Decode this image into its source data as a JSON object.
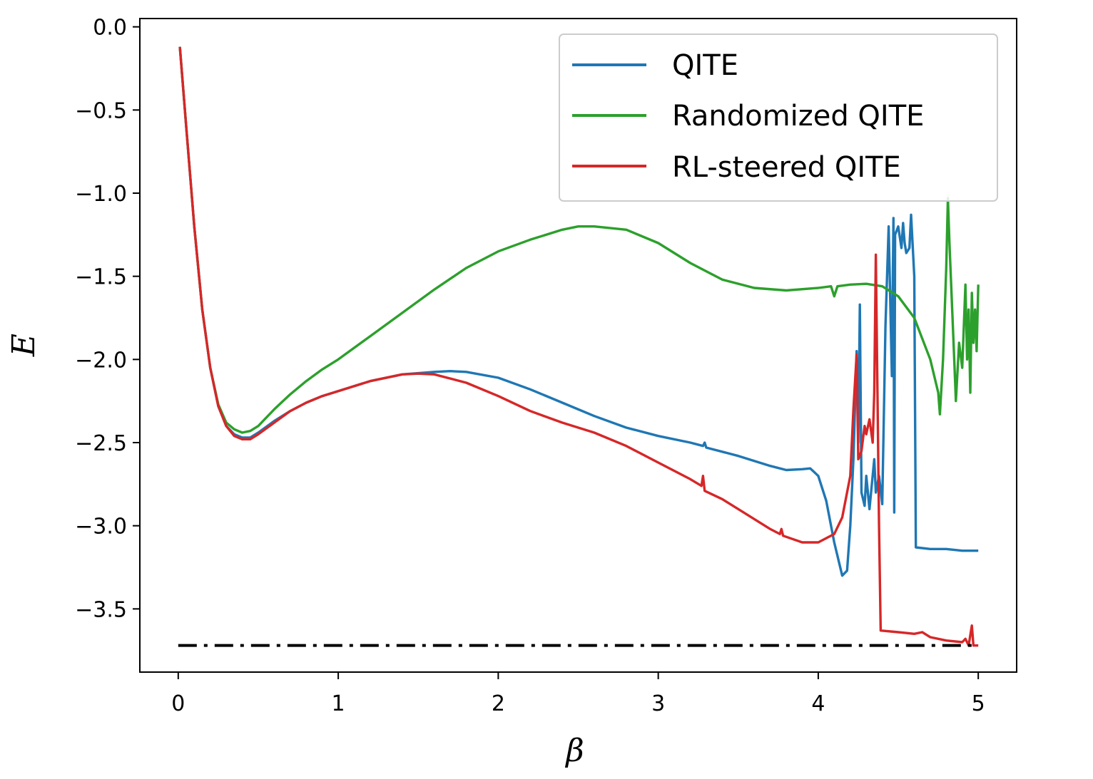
{
  "chart_data": {
    "type": "line",
    "title": "",
    "xlabel": "β",
    "ylabel": "E",
    "xlim": [
      -0.24,
      5.24
    ],
    "ylim": [
      -3.88,
      0.05
    ],
    "grid": false,
    "legend_position": "top-right",
    "x_ticks": [
      0,
      1,
      2,
      3,
      4,
      5
    ],
    "x_tick_labels": [
      "0",
      "1",
      "2",
      "3",
      "4",
      "5"
    ],
    "y_ticks": [
      0.0,
      -0.5,
      -1.0,
      -1.5,
      -2.0,
      -2.5,
      -3.0,
      -3.5
    ],
    "y_tick_labels": [
      "0.0",
      "−0.5",
      "−1.0",
      "−1.5",
      "−2.0",
      "−2.5",
      "−3.0",
      "−3.5"
    ],
    "reference_line": {
      "y": -3.72,
      "x_range": [
        0,
        5
      ],
      "style": "dash-dot",
      "color": "#000000"
    },
    "series": [
      {
        "name": "QITE",
        "color": "#1f77b4",
        "points": [
          [
            0.01,
            -0.12
          ],
          [
            0.05,
            -0.6
          ],
          [
            0.1,
            -1.2
          ],
          [
            0.15,
            -1.7
          ],
          [
            0.2,
            -2.05
          ],
          [
            0.25,
            -2.28
          ],
          [
            0.3,
            -2.4
          ],
          [
            0.35,
            -2.45
          ],
          [
            0.4,
            -2.47
          ],
          [
            0.45,
            -2.47
          ],
          [
            0.5,
            -2.44
          ],
          [
            0.6,
            -2.37
          ],
          [
            0.7,
            -2.31
          ],
          [
            0.8,
            -2.26
          ],
          [
            0.9,
            -2.22
          ],
          [
            1.0,
            -2.19
          ],
          [
            1.2,
            -2.13
          ],
          [
            1.4,
            -2.09
          ],
          [
            1.6,
            -2.075
          ],
          [
            1.7,
            -2.07
          ],
          [
            1.8,
            -2.075
          ],
          [
            2.0,
            -2.11
          ],
          [
            2.2,
            -2.18
          ],
          [
            2.4,
            -2.26
          ],
          [
            2.6,
            -2.34
          ],
          [
            2.8,
            -2.41
          ],
          [
            3.0,
            -2.46
          ],
          [
            3.2,
            -2.5
          ],
          [
            3.28,
            -2.52
          ],
          [
            3.29,
            -2.5
          ],
          [
            3.3,
            -2.53
          ],
          [
            3.5,
            -2.58
          ],
          [
            3.7,
            -2.64
          ],
          [
            3.8,
            -2.665
          ],
          [
            3.9,
            -2.66
          ],
          [
            3.95,
            -2.655
          ],
          [
            4.0,
            -2.7
          ],
          [
            4.05,
            -2.85
          ],
          [
            4.1,
            -3.1
          ],
          [
            4.15,
            -3.3
          ],
          [
            4.18,
            -3.27
          ],
          [
            4.2,
            -3.0
          ],
          [
            4.22,
            -2.6
          ],
          [
            4.24,
            -1.95
          ],
          [
            4.25,
            -2.5
          ],
          [
            4.26,
            -1.67
          ],
          [
            4.27,
            -2.8
          ],
          [
            4.29,
            -2.88
          ],
          [
            4.3,
            -2.7
          ],
          [
            4.32,
            -2.9
          ],
          [
            4.35,
            -2.6
          ],
          [
            4.36,
            -2.8
          ],
          [
            4.38,
            -2.7
          ],
          [
            4.4,
            -2.87
          ],
          [
            4.42,
            -1.8
          ],
          [
            4.44,
            -1.2
          ],
          [
            4.46,
            -2.1
          ],
          [
            4.47,
            -1.15
          ],
          [
            4.475,
            -2.92
          ],
          [
            4.48,
            -1.25
          ],
          [
            4.5,
            -1.2
          ],
          [
            4.52,
            -1.33
          ],
          [
            4.53,
            -1.18
          ],
          [
            4.54,
            -1.3
          ],
          [
            4.55,
            -1.36
          ],
          [
            4.57,
            -1.33
          ],
          [
            4.58,
            -1.13
          ],
          [
            4.6,
            -1.5
          ],
          [
            4.61,
            -3.13
          ],
          [
            4.7,
            -3.14
          ],
          [
            4.8,
            -3.14
          ],
          [
            4.9,
            -3.15
          ],
          [
            5.0,
            -3.15
          ]
        ]
      },
      {
        "name": "Randomized QITE",
        "color": "#2ca02c",
        "points": [
          [
            0.01,
            -0.12
          ],
          [
            0.05,
            -0.6
          ],
          [
            0.1,
            -1.2
          ],
          [
            0.15,
            -1.7
          ],
          [
            0.2,
            -2.05
          ],
          [
            0.25,
            -2.27
          ],
          [
            0.3,
            -2.38
          ],
          [
            0.35,
            -2.42
          ],
          [
            0.4,
            -2.44
          ],
          [
            0.45,
            -2.43
          ],
          [
            0.5,
            -2.4
          ],
          [
            0.6,
            -2.3
          ],
          [
            0.7,
            -2.21
          ],
          [
            0.8,
            -2.13
          ],
          [
            0.9,
            -2.06
          ],
          [
            1.0,
            -2.0
          ],
          [
            1.2,
            -1.86
          ],
          [
            1.4,
            -1.72
          ],
          [
            1.6,
            -1.58
          ],
          [
            1.8,
            -1.45
          ],
          [
            2.0,
            -1.35
          ],
          [
            2.2,
            -1.28
          ],
          [
            2.4,
            -1.22
          ],
          [
            2.5,
            -1.2
          ],
          [
            2.6,
            -1.2
          ],
          [
            2.8,
            -1.22
          ],
          [
            3.0,
            -1.3
          ],
          [
            3.2,
            -1.42
          ],
          [
            3.4,
            -1.52
          ],
          [
            3.6,
            -1.57
          ],
          [
            3.8,
            -1.585
          ],
          [
            4.0,
            -1.57
          ],
          [
            4.08,
            -1.56
          ],
          [
            4.1,
            -1.62
          ],
          [
            4.12,
            -1.56
          ],
          [
            4.2,
            -1.55
          ],
          [
            4.3,
            -1.545
          ],
          [
            4.4,
            -1.56
          ],
          [
            4.5,
            -1.62
          ],
          [
            4.6,
            -1.75
          ],
          [
            4.7,
            -2.0
          ],
          [
            4.75,
            -2.2
          ],
          [
            4.76,
            -2.33
          ],
          [
            4.78,
            -2.0
          ],
          [
            4.8,
            -1.45
          ],
          [
            4.81,
            -1.03
          ],
          [
            4.82,
            -1.3
          ],
          [
            4.85,
            -2.0
          ],
          [
            4.86,
            -2.25
          ],
          [
            4.88,
            -1.9
          ],
          [
            4.9,
            -2.05
          ],
          [
            4.92,
            -1.55
          ],
          [
            4.93,
            -2.0
          ],
          [
            4.94,
            -1.7
          ],
          [
            4.95,
            -2.2
          ],
          [
            4.96,
            -1.6
          ],
          [
            4.97,
            -1.9
          ],
          [
            4.98,
            -1.7
          ],
          [
            4.99,
            -1.95
          ],
          [
            5.0,
            -1.55
          ]
        ]
      },
      {
        "name": "RL-steered QITE",
        "color": "#d62728",
        "points": [
          [
            0.01,
            -0.12
          ],
          [
            0.05,
            -0.6
          ],
          [
            0.1,
            -1.2
          ],
          [
            0.15,
            -1.7
          ],
          [
            0.2,
            -2.05
          ],
          [
            0.25,
            -2.28
          ],
          [
            0.3,
            -2.4
          ],
          [
            0.35,
            -2.46
          ],
          [
            0.4,
            -2.48
          ],
          [
            0.45,
            -2.48
          ],
          [
            0.5,
            -2.45
          ],
          [
            0.6,
            -2.38
          ],
          [
            0.7,
            -2.31
          ],
          [
            0.8,
            -2.26
          ],
          [
            0.9,
            -2.22
          ],
          [
            1.0,
            -2.19
          ],
          [
            1.2,
            -2.13
          ],
          [
            1.4,
            -2.09
          ],
          [
            1.5,
            -2.085
          ],
          [
            1.6,
            -2.09
          ],
          [
            1.8,
            -2.14
          ],
          [
            2.0,
            -2.22
          ],
          [
            2.2,
            -2.31
          ],
          [
            2.4,
            -2.38
          ],
          [
            2.6,
            -2.44
          ],
          [
            2.8,
            -2.52
          ],
          [
            3.0,
            -2.62
          ],
          [
            3.2,
            -2.72
          ],
          [
            3.27,
            -2.76
          ],
          [
            3.28,
            -2.7
          ],
          [
            3.29,
            -2.79
          ],
          [
            3.4,
            -2.84
          ],
          [
            3.5,
            -2.9
          ],
          [
            3.6,
            -2.96
          ],
          [
            3.7,
            -3.02
          ],
          [
            3.76,
            -3.05
          ],
          [
            3.77,
            -3.02
          ],
          [
            3.78,
            -3.06
          ],
          [
            3.9,
            -3.1
          ],
          [
            4.0,
            -3.1
          ],
          [
            4.1,
            -3.05
          ],
          [
            4.15,
            -2.95
          ],
          [
            4.2,
            -2.7
          ],
          [
            4.22,
            -2.3
          ],
          [
            4.24,
            -1.97
          ],
          [
            4.25,
            -2.6
          ],
          [
            4.27,
            -2.55
          ],
          [
            4.29,
            -2.4
          ],
          [
            4.3,
            -2.45
          ],
          [
            4.32,
            -2.36
          ],
          [
            4.34,
            -2.5
          ],
          [
            4.35,
            -2.2
          ],
          [
            4.36,
            -1.37
          ],
          [
            4.37,
            -2.2
          ],
          [
            4.38,
            -3.0
          ],
          [
            4.39,
            -3.63
          ],
          [
            4.5,
            -3.64
          ],
          [
            4.6,
            -3.65
          ],
          [
            4.65,
            -3.64
          ],
          [
            4.7,
            -3.67
          ],
          [
            4.8,
            -3.69
          ],
          [
            4.9,
            -3.7
          ],
          [
            4.92,
            -3.68
          ],
          [
            4.94,
            -3.72
          ],
          [
            4.96,
            -3.6
          ],
          [
            4.97,
            -3.72
          ],
          [
            5.0,
            -3.72
          ]
        ]
      }
    ]
  }
}
